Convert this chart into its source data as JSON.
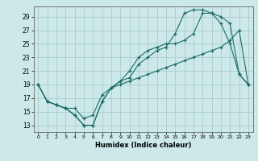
{
  "xlabel": "Humidex (Indice chaleur)",
  "bg_color": "#cce8e8",
  "grid_color": "#aacccc",
  "line_color": "#1a6b6b",
  "xlim": [
    -0.5,
    23.5
  ],
  "ylim": [
    12,
    30.5
  ],
  "yticks": [
    13,
    15,
    17,
    19,
    21,
    23,
    25,
    27,
    29
  ],
  "xticks": [
    0,
    1,
    2,
    3,
    4,
    5,
    6,
    7,
    8,
    9,
    10,
    11,
    12,
    13,
    14,
    15,
    16,
    17,
    18,
    19,
    20,
    21,
    22,
    23
  ],
  "line1_x": [
    0,
    1,
    2,
    3,
    4,
    5,
    6,
    7,
    8,
    9,
    10,
    11,
    12,
    13,
    14,
    15,
    16,
    17,
    18,
    19,
    20,
    21,
    22,
    23
  ],
  "line1_y": [
    19,
    16.5,
    16,
    15.5,
    15.5,
    14,
    14.5,
    17.5,
    18.5,
    19,
    19.5,
    20,
    20.5,
    21,
    21.5,
    22,
    22.5,
    23,
    23.5,
    24,
    24.5,
    25.5,
    27,
    19
  ],
  "line2_x": [
    0,
    1,
    2,
    3,
    4,
    5,
    6,
    7,
    8,
    9,
    10,
    11,
    12,
    13,
    14,
    15,
    16,
    17,
    18,
    19,
    20,
    21,
    22,
    23
  ],
  "line2_y": [
    19,
    16.5,
    16,
    15.5,
    14.5,
    13,
    13,
    16.5,
    18.5,
    19.5,
    21,
    23,
    24,
    24.5,
    25,
    25,
    25.5,
    26.5,
    29.5,
    29.5,
    29,
    28,
    20.5,
    19
  ],
  "line3_x": [
    0,
    1,
    2,
    3,
    4,
    5,
    6,
    7,
    8,
    9,
    10,
    11,
    12,
    13,
    14,
    15,
    16,
    17,
    18,
    19,
    20,
    21,
    22,
    23
  ],
  "line3_y": [
    19,
    16.5,
    16,
    15.5,
    14.5,
    13,
    13,
    16.5,
    18.5,
    19.5,
    20,
    22,
    23,
    24,
    24.5,
    26.5,
    29.5,
    30,
    30,
    29.5,
    28,
    25,
    20.5,
    19
  ]
}
